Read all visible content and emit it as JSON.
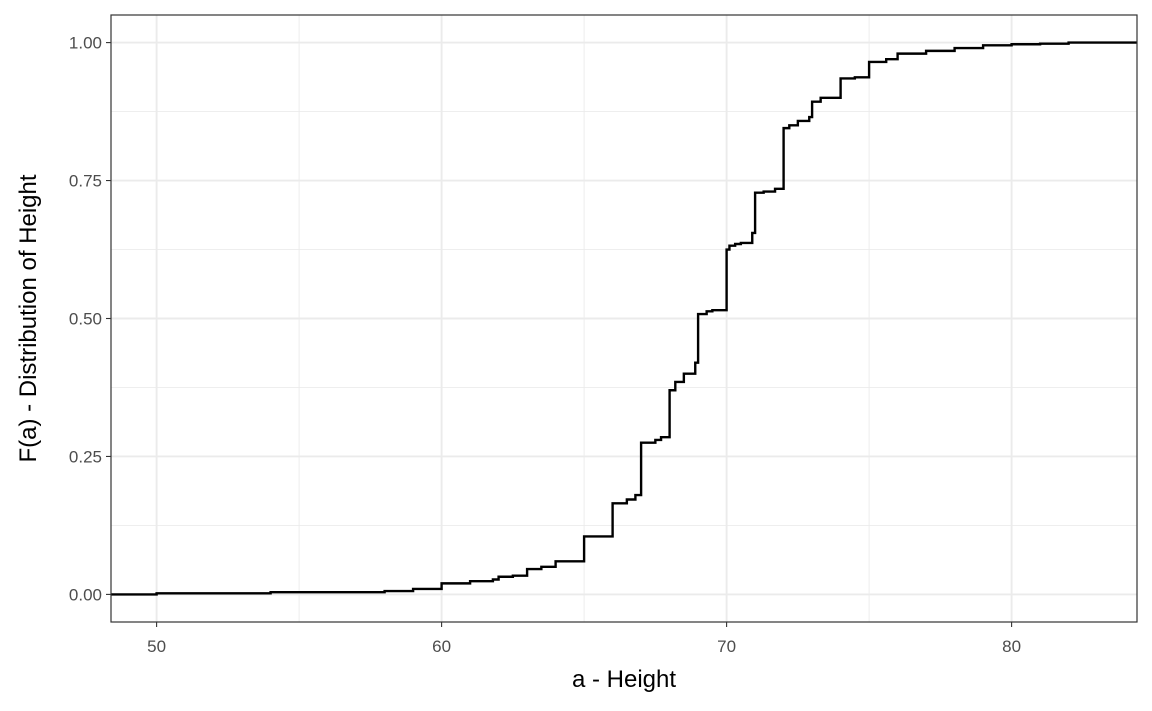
{
  "chart_data": {
    "type": "line",
    "subtype": "step (empirical cumulative distribution)",
    "xlabel": "a - Height",
    "ylabel": "F(a) - Distribution of Height",
    "xlim": [
      48.4,
      84.4
    ],
    "ylim": [
      -0.05,
      1.05
    ],
    "x_ticks": [
      50,
      60,
      70,
      80
    ],
    "x_tick_labels": [
      "50",
      "60",
      "70",
      "80"
    ],
    "x_minor_ticks": [
      55,
      65,
      75
    ],
    "y_ticks": [
      0,
      0.25,
      0.5,
      0.75,
      1
    ],
    "y_tick_labels": [
      "0.00",
      "0.25",
      "0.50",
      "0.75",
      "1.00"
    ],
    "y_minor_ticks": [
      0.125,
      0.375,
      0.625,
      0.875
    ],
    "grid": true,
    "theme": "black-and-white with light grey grid",
    "colors": {
      "line": "#000000",
      "grid": "#ebebeb",
      "panel_border": "#333333",
      "tick_text": "#4d4d4d"
    },
    "series": [
      {
        "x": [
          48.4,
          50,
          54,
          58,
          59,
          60,
          61,
          61.8,
          62,
          62.5,
          63,
          63.5,
          64,
          65,
          66,
          66.5,
          66.8,
          67,
          67.5,
          67.7,
          68,
          68.2,
          68.5,
          68.9,
          69,
          69.3,
          69.5,
          70,
          70.1,
          70.3,
          70.5,
          70.9,
          71,
          71.3,
          71.7,
          72,
          72.2,
          72.5,
          72.9,
          73,
          73.3,
          74,
          74.5,
          75,
          75.6,
          76,
          77,
          78,
          79,
          80,
          81,
          82,
          84.4
        ],
        "y": [
          0,
          0.002,
          0.004,
          0.006,
          0.01,
          0.02,
          0.024,
          0.027,
          0.032,
          0.034,
          0.046,
          0.05,
          0.06,
          0.105,
          0.165,
          0.172,
          0.18,
          0.275,
          0.28,
          0.285,
          0.37,
          0.385,
          0.4,
          0.42,
          0.508,
          0.513,
          0.515,
          0.625,
          0.632,
          0.635,
          0.637,
          0.655,
          0.728,
          0.73,
          0.735,
          0.845,
          0.85,
          0.858,
          0.865,
          0.893,
          0.9,
          0.935,
          0.937,
          0.965,
          0.97,
          0.98,
          0.985,
          0.99,
          0.995,
          0.997,
          0.998,
          1,
          1
        ]
      }
    ]
  }
}
